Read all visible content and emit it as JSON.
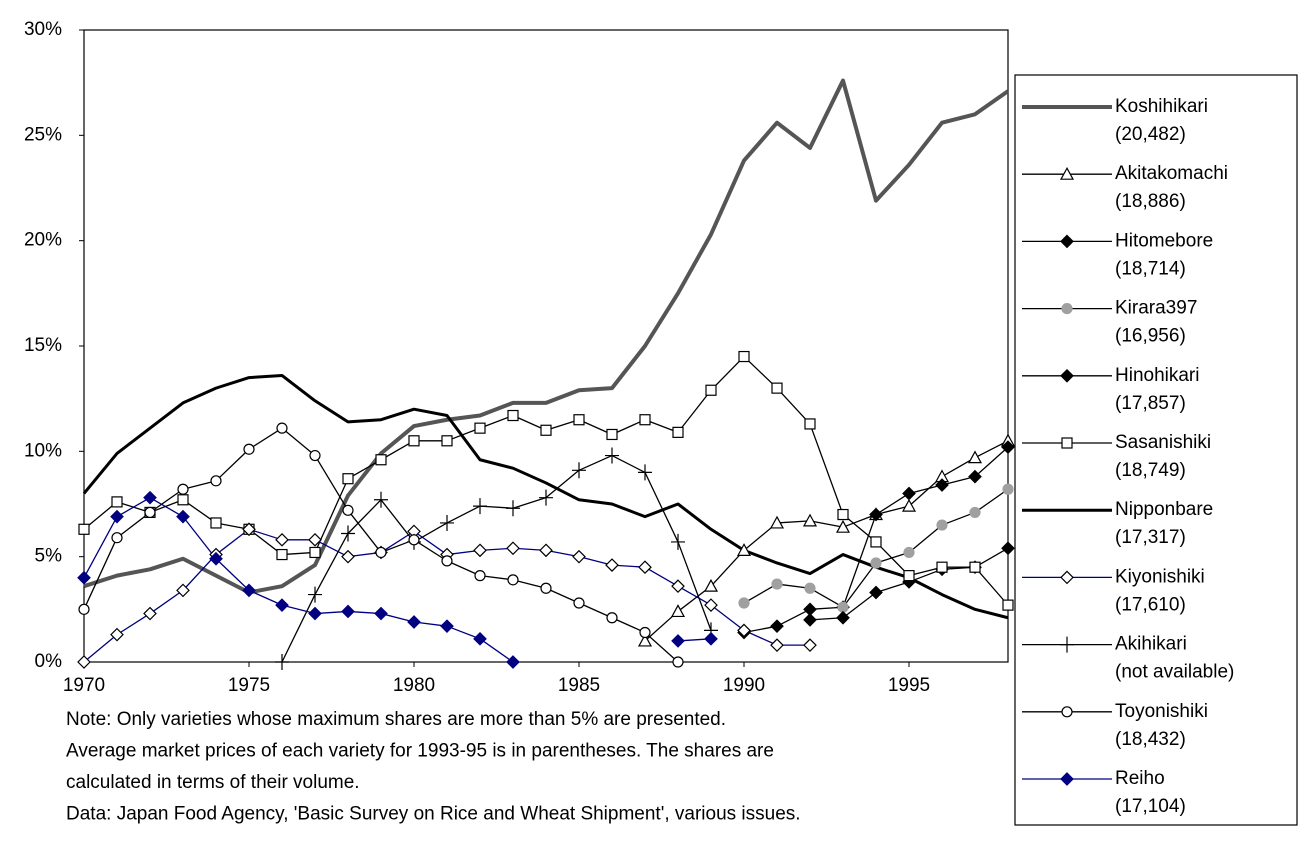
{
  "chart_data": {
    "type": "line",
    "x": [
      1970,
      1971,
      1972,
      1973,
      1974,
      1975,
      1976,
      1977,
      1978,
      1979,
      1980,
      1981,
      1982,
      1983,
      1984,
      1985,
      1986,
      1987,
      1988,
      1989,
      1990,
      1991,
      1992,
      1993,
      1994,
      1995,
      1996,
      1997,
      1998
    ],
    "xlim": [
      1970,
      1998
    ],
    "xticks": [
      1970,
      1975,
      1980,
      1985,
      1990,
      1995
    ],
    "ylim": [
      0,
      30
    ],
    "yticks": [
      {
        "value": 0,
        "label": "0%"
      },
      {
        "value": 5,
        "label": "5%"
      },
      {
        "value": 10,
        "label": "10%"
      },
      {
        "value": 15,
        "label": "15%"
      },
      {
        "value": 20,
        "label": "20%"
      },
      {
        "value": 25,
        "label": "25%"
      },
      {
        "value": 30,
        "label": "30%"
      }
    ],
    "legend": "right",
    "series": [
      {
        "name": "Koshihikari",
        "legend_note": "(20,482)",
        "color": "#555555",
        "width": 4,
        "marker": "none",
        "marker_color": "#555555",
        "values": [
          3.6,
          4.1,
          4.4,
          4.9,
          4.1,
          3.3,
          3.6,
          4.6,
          7.9,
          9.9,
          11.2,
          11.5,
          11.7,
          12.3,
          12.3,
          12.9,
          13.0,
          15.0,
          17.5,
          20.3,
          23.8,
          25.6,
          24.4,
          27.6,
          21.9,
          23.6,
          25.6,
          26.0,
          27.1
        ]
      },
      {
        "name": "Akitakomachi",
        "legend_note": "(18,886)",
        "color": "#000000",
        "width": 1.3,
        "marker": "triangle-open",
        "marker_color": "#000000",
        "values": [
          null,
          null,
          null,
          null,
          null,
          null,
          null,
          null,
          null,
          null,
          null,
          null,
          null,
          null,
          null,
          null,
          null,
          1.0,
          2.4,
          3.6,
          5.3,
          6.6,
          6.7,
          6.4,
          7.0,
          7.4,
          8.8,
          9.7,
          10.5
        ]
      },
      {
        "name": "Hitomebore",
        "legend_note": "(18,714)",
        "color": "#000000",
        "width": 1.3,
        "marker": "diamond-filled",
        "marker_color": "#000000",
        "values": [
          null,
          null,
          null,
          null,
          null,
          null,
          null,
          null,
          null,
          null,
          null,
          null,
          null,
          null,
          null,
          null,
          null,
          null,
          null,
          null,
          1.4,
          1.7,
          2.5,
          2.6,
          7.0,
          8.0,
          8.4,
          8.8,
          10.2
        ]
      },
      {
        "name": "Kirara397",
        "legend_note": "(16,956)",
        "color": "#000000",
        "width": 1.3,
        "marker": "circle-filled",
        "marker_color": "#a0a0a0",
        "values": [
          null,
          null,
          null,
          null,
          null,
          null,
          null,
          null,
          null,
          null,
          null,
          null,
          null,
          null,
          null,
          null,
          null,
          null,
          null,
          null,
          2.8,
          3.7,
          3.5,
          2.6,
          4.7,
          5.2,
          6.5,
          7.1,
          8.2
        ]
      },
      {
        "name": "Hinohikari",
        "legend_note": "(17,857)",
        "color": "#000000",
        "width": 1.3,
        "marker": "diamond-filled",
        "marker_color": "#000000",
        "values": [
          null,
          null,
          null,
          null,
          null,
          null,
          null,
          null,
          null,
          null,
          null,
          null,
          null,
          null,
          null,
          null,
          null,
          null,
          null,
          null,
          null,
          null,
          2.0,
          2.1,
          3.3,
          3.8,
          4.4,
          4.5,
          5.4
        ]
      },
      {
        "name": "Sasanishiki",
        "legend_note": "(18,749)",
        "color": "#000000",
        "width": 1.3,
        "marker": "square-open",
        "marker_color": "#000000",
        "values": [
          6.3,
          7.6,
          7.1,
          7.7,
          6.6,
          6.3,
          5.1,
          5.2,
          8.7,
          9.6,
          10.5,
          10.5,
          11.1,
          11.7,
          11.0,
          11.5,
          10.8,
          11.5,
          10.9,
          12.9,
          14.5,
          13.0,
          11.3,
          7.0,
          5.7,
          4.1,
          4.5,
          4.5,
          2.7
        ]
      },
      {
        "name": "Nipponbare",
        "legend_note": "(17,317)",
        "color": "#000000",
        "width": 3,
        "marker": "none",
        "marker_color": "#000000",
        "values": [
          8.0,
          9.9,
          11.1,
          12.3,
          13.0,
          13.5,
          13.6,
          12.4,
          11.4,
          11.5,
          12.0,
          11.7,
          9.6,
          9.2,
          8.5,
          7.7,
          7.5,
          6.9,
          7.5,
          6.3,
          5.3,
          4.7,
          4.2,
          5.1,
          4.5,
          4.0,
          3.2,
          2.5,
          2.1
        ]
      },
      {
        "name": "Kiyonishiki",
        "legend_note": "(17,610)",
        "color": "#000080",
        "width": 1.3,
        "marker": "diamond-open",
        "marker_color": "#000080",
        "values": [
          0,
          1.3,
          2.3,
          3.4,
          5.1,
          6.3,
          5.8,
          5.8,
          5.0,
          5.2,
          6.2,
          5.1,
          5.3,
          5.4,
          5.3,
          5.0,
          4.6,
          4.5,
          3.6,
          2.7,
          1.5,
          0.8,
          0.8,
          null,
          null,
          null,
          null,
          null,
          null
        ]
      },
      {
        "name": "Akihikari",
        "legend_note": "(not available)",
        "color": "#000000",
        "width": 1.3,
        "marker": "plus",
        "marker_color": "#000000",
        "values": [
          null,
          null,
          null,
          null,
          null,
          null,
          0,
          3.2,
          6.1,
          7.7,
          5.7,
          6.6,
          7.4,
          7.3,
          7.8,
          9.1,
          9.8,
          9.0,
          5.7,
          1.5,
          null,
          null,
          null,
          null,
          null,
          null,
          null,
          null,
          null
        ]
      },
      {
        "name": "Toyonishiki",
        "legend_note": "(18,432)",
        "color": "#000000",
        "width": 1.3,
        "marker": "circle-open",
        "marker_color": "#000000",
        "values": [
          2.5,
          5.9,
          7.1,
          8.2,
          8.6,
          10.1,
          11.1,
          9.8,
          7.2,
          5.2,
          5.8,
          4.8,
          4.1,
          3.9,
          3.5,
          2.8,
          2.1,
          1.4,
          0,
          null,
          null,
          null,
          null,
          null,
          null,
          null,
          null,
          null,
          null
        ]
      },
      {
        "name": "Reiho",
        "legend_note": "(17,104)",
        "color": "#000080",
        "width": 1.3,
        "marker": "diamond-filled",
        "marker_color": "#000080",
        "values": [
          4.0,
          6.9,
          7.8,
          6.9,
          4.9,
          3.4,
          2.7,
          2.3,
          2.4,
          2.3,
          1.9,
          1.7,
          1.1,
          0,
          null,
          null,
          null,
          null,
          1.0,
          1.1,
          null,
          null,
          null,
          null,
          null,
          null,
          null,
          null,
          null
        ]
      }
    ],
    "notes": [
      "Note: Only varieties whose maximum shares are more than 5% are presented.",
      "Average market prices of each variety for 1993-95 is in parentheses. The shares are",
      "calculated in terms of their volume.",
      "Data:   Japan Food Agency, 'Basic Survey on Rice and Wheat Shipment', various issues."
    ]
  }
}
